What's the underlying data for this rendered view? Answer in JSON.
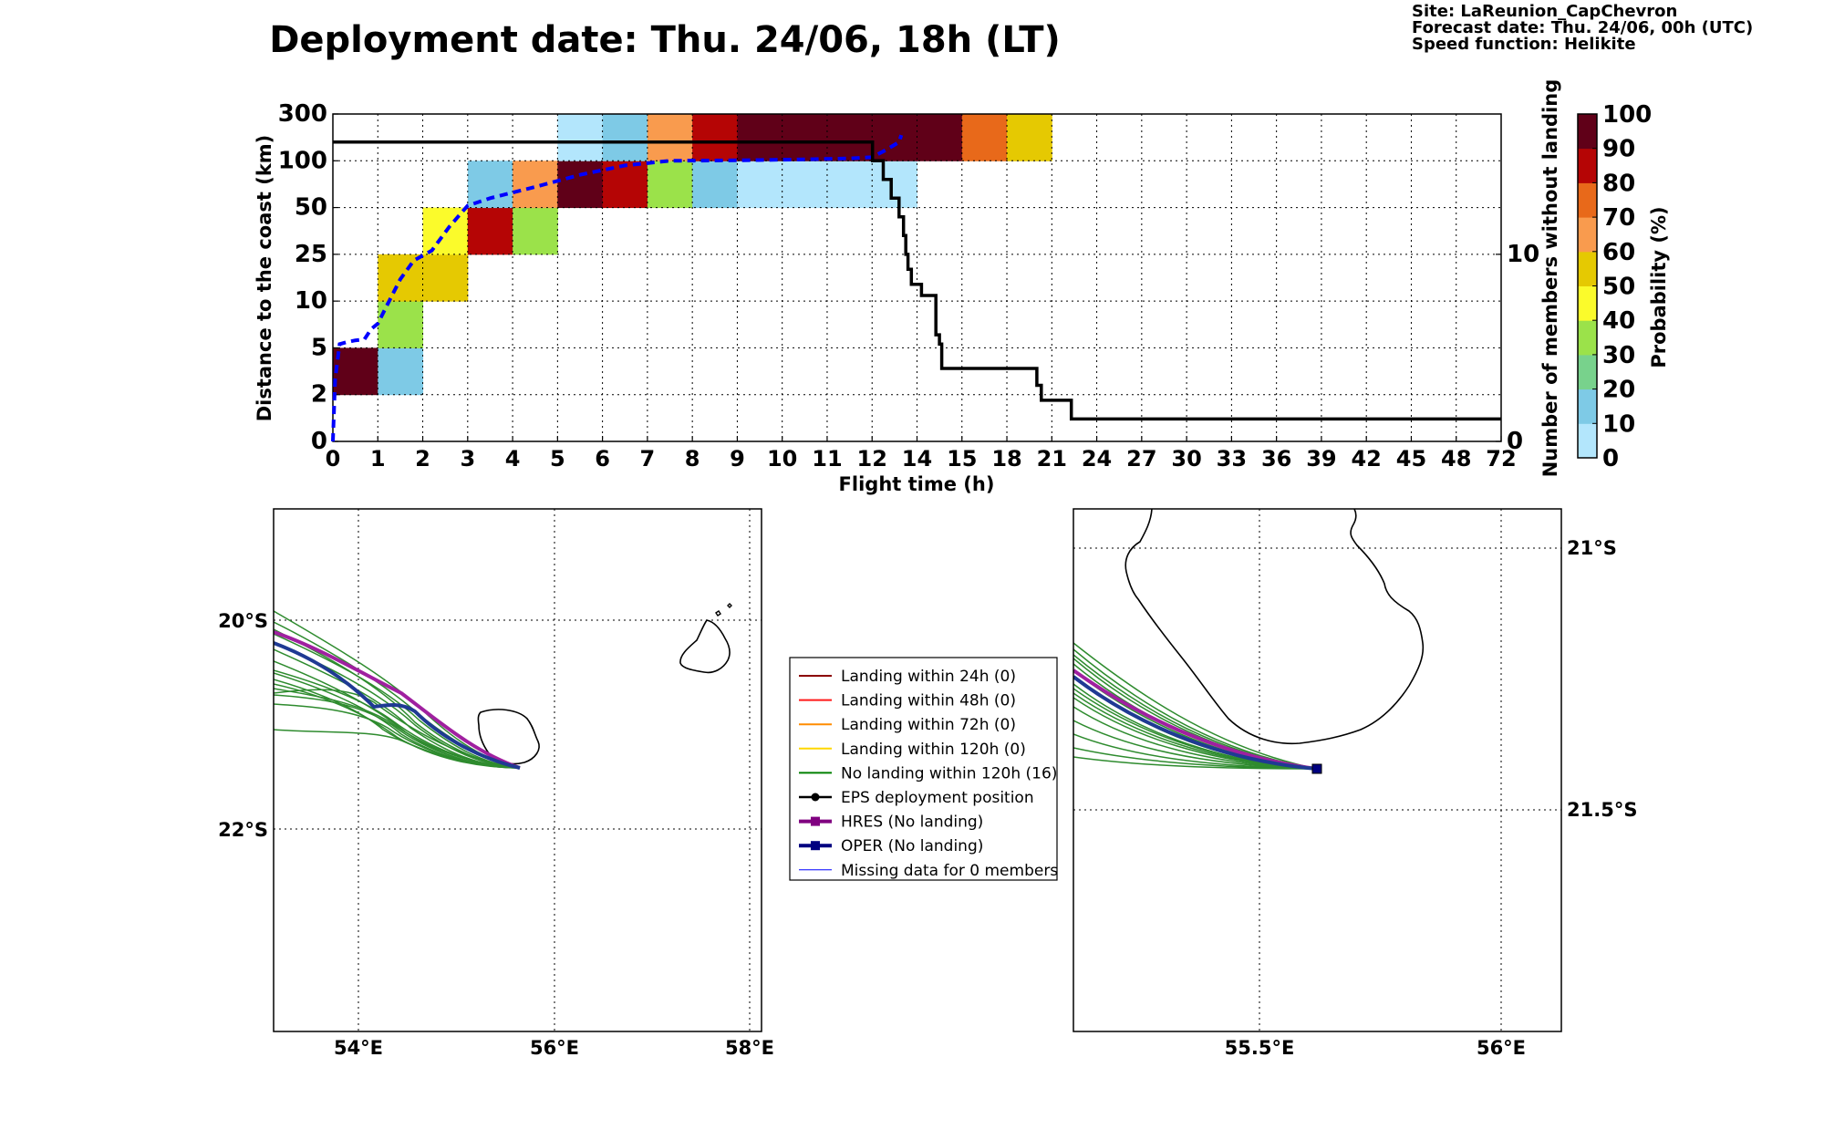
{
  "header": {
    "title": "Deployment date: Thu. 24/06, 18h (LT)",
    "site": "Site: LaReunion_CapChevron",
    "forecast": "Forecast date: Thu. 24/06, 00h (UTC)",
    "speed": "Speed function: Helikite"
  },
  "chart_data": [
    {
      "type": "heatmap",
      "xlabel": "Flight time (h)",
      "ylabel": "Distance to the coast (km)",
      "ylabel_right": "Number of members without landing",
      "colorbar_label": "Probability (%)",
      "x_ticks": [
        "0",
        "1",
        "2",
        "3",
        "4",
        "5",
        "6",
        "7",
        "8",
        "9",
        "10",
        "11",
        "12",
        "14",
        "15",
        "18",
        "21",
        "24",
        "27",
        "30",
        "33",
        "36",
        "39",
        "42",
        "45",
        "48",
        "72"
      ],
      "y_ticks": [
        "0",
        "2",
        "5",
        "10",
        "25",
        "50",
        "100",
        "300"
      ],
      "y2_ticks": [
        "0",
        "10"
      ],
      "y2_range": [
        0,
        17.5
      ],
      "colorbar_ticks": [
        "0",
        "10",
        "20",
        "30",
        "40",
        "50",
        "60",
        "70",
        "80",
        "90",
        "100"
      ],
      "colorbar_colors": [
        "#b3e6fc",
        "#7ecae6",
        "#78d28c",
        "#9be24a",
        "#fbfb2b",
        "#e5c902",
        "#f99b4e",
        "#e8691a",
        "#b50505",
        "#600018"
      ],
      "cells": [
        {
          "x": 0,
          "y": 1,
          "p": 95
        },
        {
          "x": 1,
          "y": 1,
          "p": 10
        },
        {
          "x": 1,
          "y": 2,
          "p": 35
        },
        {
          "x": 1,
          "y": 3,
          "p": 55
        },
        {
          "x": 2,
          "y": 3,
          "p": 55
        },
        {
          "x": 2,
          "y": 4,
          "p": 45
        },
        {
          "x": 3,
          "y": 4,
          "p": 85
        },
        {
          "x": 3,
          "y": 5,
          "p": 10
        },
        {
          "x": 4,
          "y": 4,
          "p": 35
        },
        {
          "x": 4,
          "y": 5,
          "p": 65
        },
        {
          "x": 5,
          "y": 5,
          "p": 95
        },
        {
          "x": 5,
          "y": 6,
          "p": 5
        },
        {
          "x": 6,
          "y": 5,
          "p": 85
        },
        {
          "x": 6,
          "y": 6,
          "p": 10
        },
        {
          "x": 7,
          "y": 5,
          "p": 35
        },
        {
          "x": 7,
          "y": 6,
          "p": 65
        },
        {
          "x": 8,
          "y": 5,
          "p": 10
        },
        {
          "x": 8,
          "y": 6,
          "p": 85
        },
        {
          "x": 9,
          "y": 5,
          "p": 5
        },
        {
          "x": 9,
          "y": 6,
          "p": 95
        },
        {
          "x": 10,
          "y": 5,
          "p": 5
        },
        {
          "x": 10,
          "y": 6,
          "p": 95
        },
        {
          "x": 11,
          "y": 5,
          "p": 5
        },
        {
          "x": 11,
          "y": 6,
          "p": 95
        },
        {
          "x": 12,
          "y": 5,
          "p": 5
        },
        {
          "x": 12,
          "y": 6,
          "p": 95
        },
        {
          "x": 13,
          "y": 6,
          "p": 95
        },
        {
          "x": 14,
          "y": 6,
          "p": 75
        },
        {
          "x": 15,
          "y": 6,
          "p": 55
        }
      ],
      "mean_distance_km": [
        [
          0,
          0
        ],
        [
          0.05,
          3
        ],
        [
          0.15,
          5.4
        ],
        [
          0.3,
          5.6
        ],
        [
          0.5,
          5.8
        ],
        [
          0.7,
          5.9
        ],
        [
          0.85,
          7
        ],
        [
          1,
          7.6
        ],
        [
          1.2,
          9.5
        ],
        [
          1.5,
          17
        ],
        [
          1.8,
          23
        ],
        [
          2.2,
          27
        ],
        [
          2.6,
          40
        ],
        [
          3,
          52
        ],
        [
          3.5,
          60
        ],
        [
          4.5,
          72
        ],
        [
          5.5,
          85
        ],
        [
          6.5,
          95
        ],
        [
          7.5,
          100
        ],
        [
          8.5,
          101
        ],
        [
          9.5,
          103
        ],
        [
          10.5,
          106
        ],
        [
          11.5,
          110
        ],
        [
          12,
          115
        ],
        [
          12.6,
          145
        ],
        [
          13.2,
          180
        ],
        [
          13.3,
          210
        ]
      ],
      "members_without_landing": [
        [
          0,
          16
        ],
        [
          12,
          16
        ],
        [
          12.02,
          15
        ],
        [
          12.5,
          14
        ],
        [
          12.85,
          13
        ],
        [
          13.2,
          12
        ],
        [
          13.4,
          11
        ],
        [
          13.5,
          10
        ],
        [
          13.6,
          9.2
        ],
        [
          13.75,
          8.4
        ],
        [
          14.1,
          7.8
        ],
        [
          14.42,
          5.7
        ],
        [
          14.5,
          5.2
        ],
        [
          14.55,
          3.9
        ],
        [
          14.7,
          3.9
        ],
        [
          20,
          3.0
        ],
        [
          20.3,
          2.2
        ],
        [
          22.3,
          1.2
        ],
        [
          72,
          1.2
        ]
      ]
    },
    {
      "type": "map",
      "lon_ticks": [
        "54°E",
        "56°E",
        "58°E"
      ],
      "lat_ticks": [
        "20°S",
        "22°S"
      ]
    },
    {
      "type": "map",
      "lon_ticks": [
        "55.5°E",
        "56°E"
      ],
      "lat_ticks": [
        "21°S",
        "21.5°S"
      ]
    }
  ],
  "legend": [
    {
      "label": "Landing within 24h (0)",
      "color": "#8b0000",
      "marker": "none",
      "width": 2
    },
    {
      "label": "Landing within 48h (0)",
      "color": "#ff1a1a",
      "marker": "none",
      "width": 2
    },
    {
      "label": "Landing within 72h (0)",
      "color": "#ff8c00",
      "marker": "none",
      "width": 2
    },
    {
      "label": "Landing within 120h (0)",
      "color": "#ffd700",
      "marker": "none",
      "width": 2
    },
    {
      "label": "No landing within 120h (16)",
      "color": "#008000",
      "marker": "none",
      "width": 2
    },
    {
      "label": "EPS deployment position",
      "color": "#000000",
      "marker": "circle",
      "width": 2.5
    },
    {
      "label": "HRES (No landing)",
      "color": "#800080",
      "marker": "square",
      "width": 4
    },
    {
      "label": "OPER (No landing)",
      "color": "#000080",
      "marker": "square",
      "width": 4
    },
    {
      "label": "Missing data for 0 members",
      "color": "#0000ff",
      "marker": "none",
      "width": 1
    }
  ]
}
